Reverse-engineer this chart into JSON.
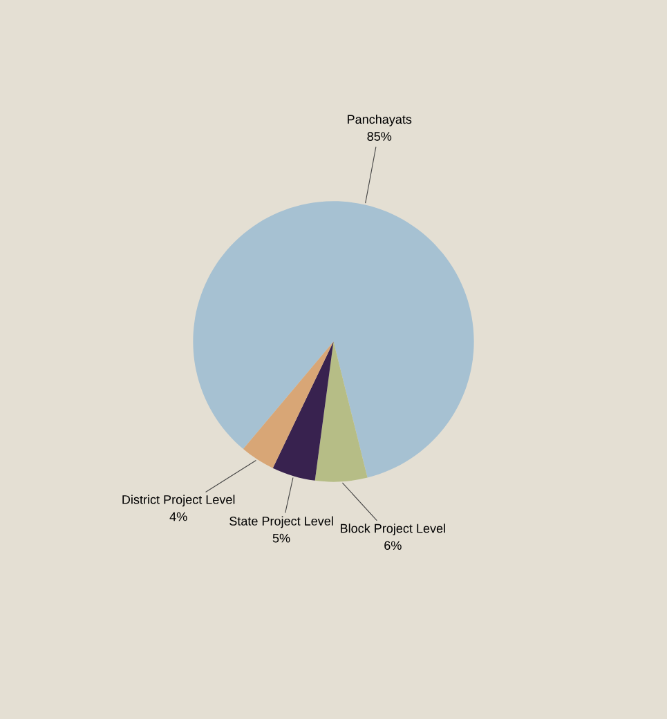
{
  "chart_data": {
    "type": "pie",
    "categories": [
      "Panchayats",
      "Block Project Level",
      "State Project Level",
      "District Project Level"
    ],
    "values": [
      85,
      6,
      5,
      4
    ],
    "value_labels": [
      "85%",
      "6%",
      "5%",
      "4%"
    ],
    "colors": [
      "#a6c1d2",
      "#b6bd86",
      "#38224f",
      "#d8a676"
    ],
    "legend": false
  }
}
